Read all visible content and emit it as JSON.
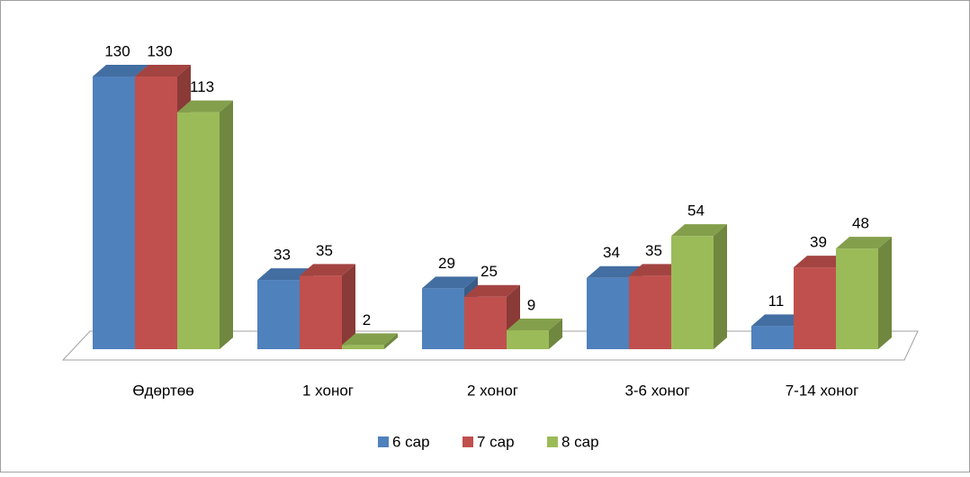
{
  "chart_data": {
    "type": "bar3d",
    "categories": [
      "Өдөртөө",
      "1 хоног",
      "2 хоног",
      "3-6 хоног",
      "7-14 хоног"
    ],
    "series": [
      {
        "name": "6 сар",
        "color": "#4f81bd",
        "values": [
          130,
          33,
          29,
          34,
          11
        ]
      },
      {
        "name": "7 сар",
        "color": "#c0504d",
        "values": [
          130,
          35,
          25,
          35,
          39
        ]
      },
      {
        "name": "8 сар",
        "color": "#9bbb59",
        "values": [
          113,
          2,
          9,
          54,
          48
        ]
      }
    ],
    "legend": "bottom"
  }
}
